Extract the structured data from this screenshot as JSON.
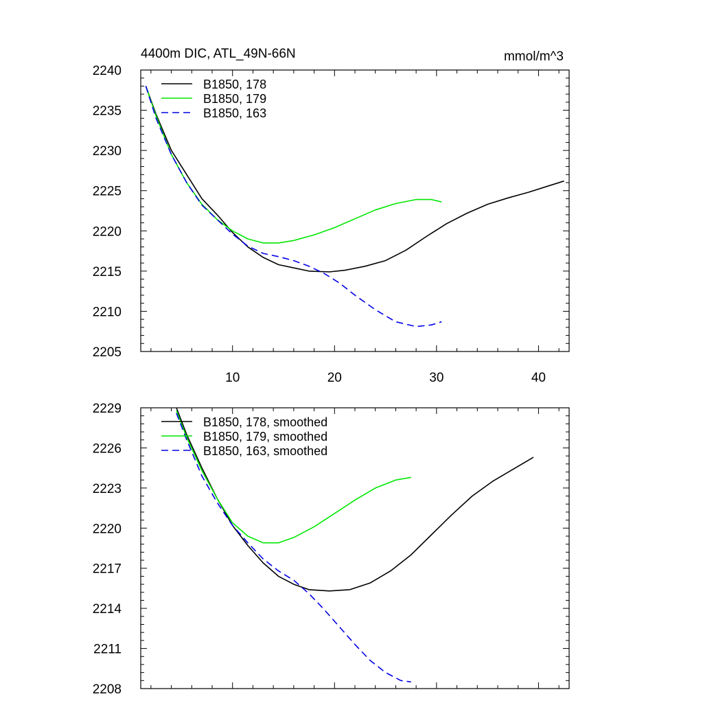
{
  "chart_data": [
    {
      "type": "line",
      "title": "4400m DIC, ATL_49N-66N",
      "units": "mmol/m^3",
      "xlabel": "",
      "ylabel": "",
      "xlim": [
        1,
        43
      ],
      "ylim": [
        2205,
        2240
      ],
      "xticks": [
        10,
        20,
        30,
        40
      ],
      "yticks": [
        2205,
        2210,
        2215,
        2220,
        2225,
        2230,
        2235,
        2240
      ],
      "xtick_labels": [
        "10",
        "20",
        "30",
        "40"
      ],
      "ytick_labels": [
        "2205",
        "2210",
        "2215",
        "2220",
        "2225",
        "2230",
        "2235",
        "2240"
      ],
      "legend_location": "top-left",
      "series": [
        {
          "name": "B1850, 178",
          "color": "#000000",
          "dash": "solid",
          "x": [
            1.5,
            2.5,
            4,
            5.5,
            7,
            8.5,
            10,
            11.5,
            13,
            14.5,
            16,
            17.5,
            19.5,
            21,
            23,
            25,
            27,
            29,
            31,
            33,
            35,
            37,
            39,
            41,
            42.5
          ],
          "y": [
            2238.0,
            2234.5,
            2230.0,
            2227.0,
            2224.0,
            2222.0,
            2219.8,
            2218.0,
            2216.7,
            2215.8,
            2215.4,
            2215.0,
            2214.9,
            2215.1,
            2215.6,
            2216.3,
            2217.6,
            2219.3,
            2220.9,
            2222.2,
            2223.3,
            2224.1,
            2224.8,
            2225.6,
            2226.2
          ]
        },
        {
          "name": "B1850, 179",
          "color": "#00e600",
          "dash": "solid",
          "x": [
            1.5,
            2.5,
            4,
            5.5,
            7,
            8.5,
            10,
            11.5,
            13,
            14.5,
            16,
            18,
            20,
            22,
            24,
            26,
            28,
            29.5,
            30.5
          ],
          "y": [
            2238.0,
            2234.3,
            2229.5,
            2226.0,
            2223.3,
            2221.4,
            2220.0,
            2219.0,
            2218.5,
            2218.5,
            2218.8,
            2219.5,
            2220.4,
            2221.5,
            2222.6,
            2223.4,
            2223.9,
            2223.9,
            2223.6
          ]
        },
        {
          "name": "B1850, 163",
          "color": "#0000e6",
          "dash": "dashed",
          "x": [
            1.5,
            2.5,
            4,
            5.5,
            7,
            8.5,
            10,
            11.5,
            13,
            14.5,
            16,
            17.5,
            19,
            20.5,
            22,
            24,
            26,
            28,
            29.5,
            30.5
          ],
          "y": [
            2238.0,
            2234.0,
            2229.5,
            2226.0,
            2223.2,
            2221.4,
            2219.6,
            2218.1,
            2217.2,
            2216.8,
            2216.3,
            2215.6,
            2214.7,
            2213.5,
            2212.0,
            2210.2,
            2208.7,
            2208.1,
            2208.3,
            2208.7
          ]
        }
      ]
    },
    {
      "type": "line",
      "title": "",
      "xlabel": "",
      "ylabel": "",
      "xlim": [
        1,
        43
      ],
      "ylim": [
        2208,
        2229
      ],
      "xticks": [
        10,
        20,
        30,
        40
      ],
      "yticks": [
        2208,
        2211,
        2214,
        2217,
        2220,
        2223,
        2226,
        2229
      ],
      "ytick_labels": [
        "2208",
        "2211",
        "2214",
        "2217",
        "2220",
        "2223",
        "2226",
        "2229"
      ],
      "legend_location": "top-left",
      "series": [
        {
          "name": "B1850, 178, smoothed",
          "color": "#000000",
          "dash": "solid",
          "x": [
            4.5,
            5.5,
            7,
            8.5,
            10,
            11.5,
            13,
            14.5,
            16,
            17.5,
            19.5,
            21.5,
            23.5,
            25.5,
            27.5,
            29.5,
            31.5,
            33.5,
            35.5,
            37.5,
            39.5
          ],
          "y": [
            2229.0,
            2227.0,
            2224.5,
            2222.2,
            2220.2,
            2218.7,
            2217.4,
            2216.4,
            2215.8,
            2215.4,
            2215.3,
            2215.4,
            2215.9,
            2216.8,
            2218.0,
            2219.5,
            2221.0,
            2222.4,
            2223.5,
            2224.4,
            2225.3
          ]
        },
        {
          "name": "B1850, 179, smoothed",
          "color": "#00e600",
          "dash": "solid",
          "x": [
            4.5,
            5.5,
            7,
            8.5,
            10,
            11.5,
            13,
            14.5,
            16,
            18,
            20,
            22,
            24,
            26,
            27.5
          ],
          "y": [
            2228.8,
            2226.8,
            2224.3,
            2222.2,
            2220.4,
            2219.4,
            2218.9,
            2218.9,
            2219.3,
            2220.1,
            2221.1,
            2222.1,
            2223.0,
            2223.6,
            2223.8
          ]
        },
        {
          "name": "B1850, 163, smoothed",
          "color": "#0000e6",
          "dash": "dashed",
          "x": [
            4.5,
            5.5,
            7,
            8.5,
            10,
            11.5,
            13,
            14.5,
            16,
            17.5,
            19,
            20.5,
            22,
            23.5,
            25,
            26.5,
            27.5
          ],
          "y": [
            2228.6,
            2226.6,
            2223.9,
            2221.9,
            2220.2,
            2218.9,
            2217.7,
            2216.8,
            2216.1,
            2215.1,
            2213.9,
            2212.6,
            2211.3,
            2210.1,
            2209.2,
            2208.6,
            2208.5
          ]
        }
      ]
    }
  ]
}
